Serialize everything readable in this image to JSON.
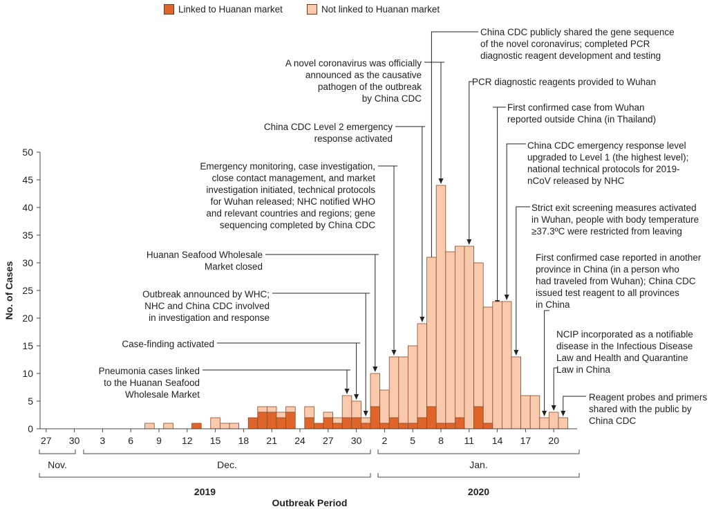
{
  "colors": {
    "linked": "#e0652a",
    "not_linked": "#f8c9ad",
    "outline": "#8a4a2a",
    "axis": "#444444",
    "arrow": "#222222"
  },
  "legend": {
    "linked": "Linked to Huanan market",
    "not_linked": "Not linked to Huanan market"
  },
  "chart_data": {
    "type": "bar",
    "stacked": true,
    "ylabel": "No. of Cases",
    "xlabel": "Outbreak Period",
    "ylim": [
      0,
      50
    ],
    "yticks": [
      0,
      5,
      10,
      15,
      20,
      25,
      30,
      35,
      40,
      45,
      50
    ],
    "categories": [
      "2019-11-27",
      "2019-11-28",
      "2019-11-29",
      "2019-11-30",
      "2019-12-01",
      "2019-12-02",
      "2019-12-03",
      "2019-12-04",
      "2019-12-05",
      "2019-12-06",
      "2019-12-07",
      "2019-12-08",
      "2019-12-09",
      "2019-12-10",
      "2019-12-11",
      "2019-12-12",
      "2019-12-13",
      "2019-12-14",
      "2019-12-15",
      "2019-12-16",
      "2019-12-17",
      "2019-12-18",
      "2019-12-19",
      "2019-12-20",
      "2019-12-21",
      "2019-12-22",
      "2019-12-23",
      "2019-12-24",
      "2019-12-25",
      "2019-12-26",
      "2019-12-27",
      "2019-12-28",
      "2019-12-29",
      "2019-12-30",
      "2019-12-31",
      "2020-01-01",
      "2020-01-02",
      "2020-01-03",
      "2020-01-04",
      "2020-01-05",
      "2020-01-06",
      "2020-01-07",
      "2020-01-08",
      "2020-01-09",
      "2020-01-10",
      "2020-01-11",
      "2020-01-12",
      "2020-01-13",
      "2020-01-14",
      "2020-01-15",
      "2020-01-16",
      "2020-01-17",
      "2020-01-18",
      "2020-01-19",
      "2020-01-20",
      "2020-01-21",
      "2020-01-22"
    ],
    "series": [
      {
        "name": "Linked to Huanan market",
        "values": [
          0,
          0,
          0,
          0,
          0,
          0,
          0,
          0,
          0,
          0,
          0,
          0,
          0,
          0,
          0,
          0,
          1,
          0,
          0,
          0,
          0,
          0,
          2,
          3,
          3,
          2,
          3,
          0,
          2,
          1,
          2,
          1,
          2,
          2,
          1,
          4,
          1,
          2,
          1,
          1,
          2,
          4,
          1,
          1,
          2,
          0,
          4,
          1,
          0,
          0,
          0,
          0,
          0,
          0,
          0,
          0,
          0
        ]
      },
      {
        "name": "Not linked to Huanan market",
        "values": [
          0,
          0,
          0,
          0,
          0,
          0,
          0,
          0,
          0,
          0,
          0,
          1,
          0,
          1,
          0,
          0,
          0,
          0,
          2,
          1,
          1,
          0,
          0,
          1,
          1,
          1,
          1,
          0,
          2,
          0,
          1,
          1,
          4,
          3,
          1,
          6,
          6,
          11,
          12,
          14,
          17,
          27,
          43,
          31,
          31,
          33,
          26,
          21,
          23,
          23,
          13,
          6,
          6,
          2,
          3,
          2,
          0
        ]
      }
    ],
    "x_tick_labels": [
      {
        "label": "27",
        "index": 0
      },
      {
        "label": "30",
        "index": 3
      },
      {
        "label": "3",
        "index": 6
      },
      {
        "label": "6",
        "index": 9
      },
      {
        "label": "9",
        "index": 12
      },
      {
        "label": "12",
        "index": 15
      },
      {
        "label": "15",
        "index": 18
      },
      {
        "label": "18",
        "index": 21
      },
      {
        "label": "21",
        "index": 24
      },
      {
        "label": "24",
        "index": 27
      },
      {
        "label": "27",
        "index": 30
      },
      {
        "label": "30",
        "index": 33
      },
      {
        "label": "2",
        "index": 36
      },
      {
        "label": "5",
        "index": 39
      },
      {
        "label": "8",
        "index": 42
      },
      {
        "label": "11",
        "index": 45
      },
      {
        "label": "14",
        "index": 48
      },
      {
        "label": "17",
        "index": 51
      },
      {
        "label": "20",
        "index": 54
      }
    ],
    "month_labels": [
      "Nov.",
      "Dec.",
      "Jan."
    ],
    "year_labels": [
      "2019",
      "2020"
    ]
  },
  "annotations": [
    {
      "id": "gene-seq",
      "text": "China CDC publicly shared the gene sequence\nof the novel coronavirus; completed PCR\ndiagnostic reagent development and testing"
    },
    {
      "id": "novel-cov",
      "text": "A novel coronavirus was officially\nannounced as the causative\npathogen of the outbreak\nby China CDC"
    },
    {
      "id": "pcr-wuhan",
      "text": "PCR diagnostic reagents provided to Wuhan"
    },
    {
      "id": "thailand",
      "text": "First confirmed case from Wuhan\nreported outside China (in Thailand)"
    },
    {
      "id": "level2",
      "text": "China CDC Level 2 emergency\nresponse activated"
    },
    {
      "id": "level1",
      "text": "China CDC emergency response level\nupgraded to Level 1 (the highest level);\nnational technical protocols for 2019-\nnCoV released by NHC"
    },
    {
      "id": "monitoring",
      "text": "Emergency monitoring, case investigation,\nclose contact management, and market\ninvestigation initiated, technical protocols\nfor Wuhan released; NHC notified WHO\nand relevant countries and regions; gene\nsequencing completed by China CDC"
    },
    {
      "id": "exit-screen",
      "text": "Strict exit screening measures activated\nin Wuhan, people with body temperature\n≥37.3ºC were restricted from leaving"
    },
    {
      "id": "market-closed",
      "text": "Huanan Seafood Wholesale\nMarket closed"
    },
    {
      "id": "other-province",
      "text": "First confirmed case reported in another\nprovince in China (in a person who\nhad traveled from Wuhan); China CDC\nissued test reagent to all provinces\nin China"
    },
    {
      "id": "whc",
      "text": "Outbreak announced by WHC;\nNHC and China CDC involved\nin investigation and response"
    },
    {
      "id": "ncip",
      "text": "NCIP incorporated as a notifiable\ndisease in the Infectious Disease\nLaw and Health and Quarantine\nLaw in China"
    },
    {
      "id": "case-finding",
      "text": "Case-finding activated"
    },
    {
      "id": "pneumonia",
      "text": "Pneumonia cases linked\nto the Huanan Seafood\nWholesale Market"
    },
    {
      "id": "reagent-probes",
      "text": "Reagent probes and primers\nshared with the public by\nChina CDC"
    }
  ]
}
